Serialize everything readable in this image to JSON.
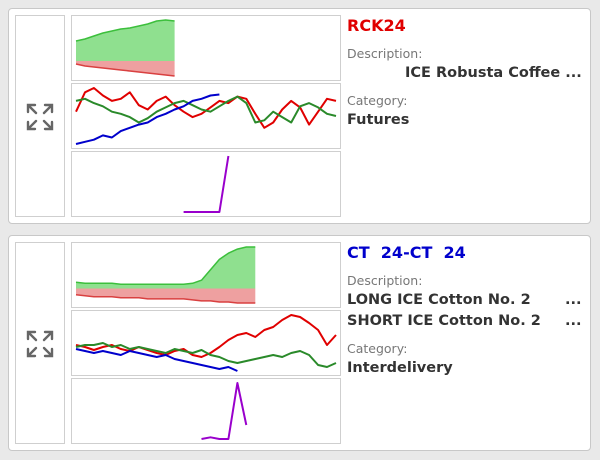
{
  "cards": [
    {
      "title": "RCK24",
      "title_color": "#e00000",
      "description_label": "Description:",
      "description": "ICE Robusta Coffee ...",
      "category_label": "Category:",
      "category": "Futures",
      "top": {
        "series": [
          {
            "color": "#3cbf3c",
            "fill": "#8fe08f",
            "values": [
              20,
              22,
              25,
              28,
              30,
              32,
              33,
              35,
              37,
              40,
              41,
              40,
              null,
              null,
              null,
              null,
              null,
              null,
              null,
              null,
              null,
              null,
              null,
              null,
              null,
              null,
              null,
              null,
              null,
              null
            ]
          },
          {
            "color": "#d94040",
            "fill": "#eea0a0",
            "values": [
              -3,
              -5,
              -6,
              -7,
              -8,
              -9,
              -10,
              -11,
              -12,
              -13,
              -14,
              -15,
              null,
              null,
              null,
              null,
              null,
              null,
              null,
              null,
              null,
              null,
              null,
              null,
              null,
              null,
              null,
              null,
              null,
              null
            ]
          }
        ]
      },
      "middle": {
        "series": [
          {
            "color": "#e00000",
            "values": [
              40,
              58,
              62,
              55,
              50,
              52,
              58,
              46,
              42,
              50,
              54,
              46,
              40,
              35,
              38,
              44,
              50,
              48,
              54,
              52,
              38,
              25,
              30,
              42,
              50,
              44,
              28,
              40,
              52,
              50
            ]
          },
          {
            "color": "#2a8a2a",
            "values": [
              50,
              52,
              48,
              45,
              40,
              38,
              35,
              30,
              34,
              40,
              44,
              48,
              50,
              46,
              42,
              40,
              45,
              50,
              54,
              48,
              30,
              32,
              40,
              35,
              30,
              45,
              48,
              44,
              38,
              36
            ]
          },
          {
            "color": "#0000cc",
            "values": [
              10,
              12,
              14,
              18,
              16,
              22,
              25,
              28,
              30,
              35,
              38,
              42,
              45,
              50,
              52,
              55,
              56,
              null,
              null,
              null,
              null,
              null,
              null,
              null,
              null,
              null,
              null,
              null,
              null,
              null
            ]
          }
        ]
      },
      "bottom": {
        "series": [
          {
            "color": "#9900cc",
            "values": [
              null,
              null,
              null,
              null,
              null,
              null,
              null,
              null,
              null,
              null,
              null,
              null,
              0,
              0,
              0,
              0,
              0,
              100,
              null,
              null,
              null,
              null,
              null,
              null,
              null,
              null,
              null,
              null,
              null,
              null
            ]
          }
        ]
      }
    },
    {
      "title": "CT  24-CT  24",
      "title_color": "#0000cc",
      "description_label": "Description:",
      "long": "LONG ICE Cotton No. 2",
      "short": "SHORT ICE Cotton No. 2",
      "more": "...",
      "category_label": "Category:",
      "category": "Interdelivery",
      "top": {
        "series": [
          {
            "color": "#3cbf3c",
            "fill": "#8fe08f",
            "values": [
              6,
              5,
              5,
              5,
              5,
              4,
              4,
              4,
              4,
              4,
              4,
              4,
              4,
              5,
              8,
              18,
              28,
              34,
              38,
              40,
              40,
              null,
              null,
              null,
              null,
              null,
              null,
              null,
              null,
              null
            ]
          },
          {
            "color": "#d94040",
            "fill": "#eea0a0",
            "values": [
              -6,
              -7,
              -8,
              -8,
              -8,
              -9,
              -9,
              -9,
              -10,
              -10,
              -10,
              -10,
              -10,
              -11,
              -12,
              -12,
              -13,
              -13,
              -14,
              -14,
              -14,
              null,
              null,
              null,
              null,
              null,
              null,
              null,
              null,
              null
            ]
          }
        ]
      },
      "middle": {
        "series": [
          {
            "color": "#e00000",
            "values": [
              30,
              28,
              25,
              28,
              30,
              26,
              24,
              28,
              25,
              22,
              20,
              24,
              26,
              20,
              18,
              22,
              28,
              35,
              40,
              42,
              38,
              45,
              48,
              55,
              60,
              58,
              52,
              45,
              30,
              40
            ]
          },
          {
            "color": "#2a8a2a",
            "values": [
              28,
              30,
              30,
              32,
              28,
              30,
              26,
              28,
              26,
              24,
              22,
              26,
              24,
              22,
              25,
              20,
              18,
              14,
              12,
              14,
              16,
              18,
              20,
              18,
              22,
              24,
              20,
              10,
              8,
              12
            ]
          },
          {
            "color": "#0000cc",
            "values": [
              26,
              24,
              22,
              24,
              22,
              20,
              24,
              22,
              20,
              18,
              20,
              16,
              14,
              12,
              10,
              8,
              6,
              8,
              4,
              null,
              null,
              null,
              null,
              null,
              null,
              null,
              null,
              null,
              null,
              null
            ]
          }
        ]
      },
      "bottom": {
        "series": [
          {
            "color": "#9900cc",
            "values": [
              null,
              null,
              null,
              null,
              null,
              null,
              null,
              null,
              null,
              null,
              null,
              null,
              null,
              null,
              0,
              3,
              0,
              0,
              100,
              25,
              null,
              null,
              null,
              null,
              null,
              null,
              null,
              null,
              null,
              null
            ]
          }
        ]
      }
    }
  ]
}
